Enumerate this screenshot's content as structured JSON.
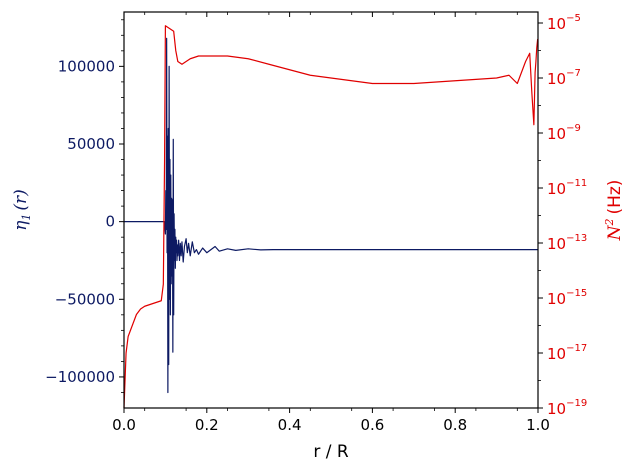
{
  "chart_data": {
    "type": "line",
    "title": "",
    "xlabel": "r / R",
    "xlim": [
      0.0,
      1.0
    ],
    "x_ticks": [
      "0.0",
      "0.2",
      "0.4",
      "0.6",
      "0.8",
      "1.0"
    ],
    "y_left": {
      "label_symbol": "η",
      "label_sub": "1",
      "label_rest": "(r)",
      "lim": [
        -120000,
        135000
      ],
      "ticks": [
        {
          "value": 100000,
          "label": "100000"
        },
        {
          "value": 50000,
          "label": "50000"
        },
        {
          "value": 0,
          "label": "0"
        },
        {
          "value": -50000,
          "label": "−50000"
        },
        {
          "value": -100000,
          "label": "−100000"
        }
      ],
      "color": "#0d1a63"
    },
    "y_right": {
      "label_symbol": "N",
      "label_sup": "2",
      "label_rest": "(Hz)",
      "scale": "log",
      "lim_exp": [
        -19,
        -4.6
      ],
      "ticks": [
        {
          "exp": -5,
          "base": "10",
          "sup": "−5"
        },
        {
          "exp": -7,
          "base": "10",
          "sup": "−7"
        },
        {
          "exp": -9,
          "base": "10",
          "sup": "−9"
        },
        {
          "exp": -11,
          "base": "10",
          "sup": "−11"
        },
        {
          "exp": -13,
          "base": "10",
          "sup": "−13"
        },
        {
          "exp": -15,
          "base": "10",
          "sup": "−15"
        },
        {
          "exp": -17,
          "base": "10",
          "sup": "−17"
        },
        {
          "exp": -19,
          "base": "10",
          "sup": "−19"
        }
      ],
      "color": "#e00000"
    },
    "series": [
      {
        "axis": "left",
        "color": "#0d1a63",
        "x": [
          0.0,
          0.05,
          0.098,
          0.1,
          0.101,
          0.102,
          0.103,
          0.104,
          0.105,
          0.106,
          0.107,
          0.108,
          0.109,
          0.11,
          0.111,
          0.112,
          0.113,
          0.114,
          0.115,
          0.116,
          0.117,
          0.118,
          0.119,
          0.12,
          0.121,
          0.122,
          0.123,
          0.124,
          0.125,
          0.126,
          0.127,
          0.128,
          0.129,
          0.13,
          0.132,
          0.134,
          0.136,
          0.138,
          0.14,
          0.143,
          0.146,
          0.15,
          0.153,
          0.156,
          0.16,
          0.165,
          0.17,
          0.175,
          0.18,
          0.19,
          0.2,
          0.21,
          0.22,
          0.23,
          0.25,
          0.27,
          0.3,
          0.33,
          0.36,
          0.4,
          0.5,
          0.6,
          0.7,
          0.8,
          0.9,
          1.0
        ],
        "values": [
          0,
          0,
          0,
          -8000,
          20000,
          -5000,
          118000,
          -20000,
          55000,
          -110000,
          60000,
          -92000,
          100000,
          -50000,
          40000,
          -60000,
          30000,
          -40000,
          15000,
          -35000,
          14000,
          -84000,
          53000,
          -60000,
          5000,
          -25000,
          -5000,
          -30000,
          -10000,
          -20000,
          -12000,
          -25000,
          -15000,
          -22000,
          -12000,
          -25000,
          -14000,
          -22000,
          -13000,
          -26000,
          -16000,
          -11000,
          -20000,
          -14000,
          -22000,
          -13000,
          -20000,
          -18000,
          -21000,
          -17000,
          -20000,
          -18000,
          -16000,
          -19000,
          -17500,
          -18500,
          -17500,
          -18200,
          -18000,
          -18000,
          -18000,
          -18000,
          -18000,
          -18000,
          -18000,
          -18000
        ]
      },
      {
        "axis": "right",
        "color": "#e00000",
        "x": [
          0.0,
          0.005,
          0.01,
          0.02,
          0.03,
          0.04,
          0.05,
          0.06,
          0.07,
          0.08,
          0.09,
          0.095,
          0.098,
          0.1,
          0.12,
          0.125,
          0.13,
          0.14,
          0.15,
          0.16,
          0.18,
          0.2,
          0.25,
          0.3,
          0.35,
          0.4,
          0.45,
          0.5,
          0.55,
          0.6,
          0.7,
          0.8,
          0.85,
          0.9,
          0.93,
          0.95,
          0.96,
          0.97,
          0.98,
          0.985,
          0.99,
          0.993,
          0.995,
          0.997,
          0.999,
          1.0
        ],
        "log_values": [
          -19.0,
          -17.0,
          -16.4,
          -16.0,
          -15.6,
          -15.4,
          -15.3,
          -15.25,
          -15.2,
          -15.15,
          -15.1,
          -14.5,
          -10.0,
          -5.1,
          -5.3,
          -6.0,
          -6.4,
          -6.5,
          -6.4,
          -6.3,
          -6.2,
          -6.2,
          -6.2,
          -6.3,
          -6.5,
          -6.7,
          -6.9,
          -7.0,
          -7.1,
          -7.2,
          -7.2,
          -7.1,
          -7.05,
          -7.0,
          -6.9,
          -7.2,
          -6.8,
          -6.4,
          -6.1,
          -7.5,
          -8.7,
          -6.8,
          -6.4,
          -5.9,
          -5.6,
          -5.7
        ]
      }
    ],
    "grid": false,
    "legend": "none"
  }
}
